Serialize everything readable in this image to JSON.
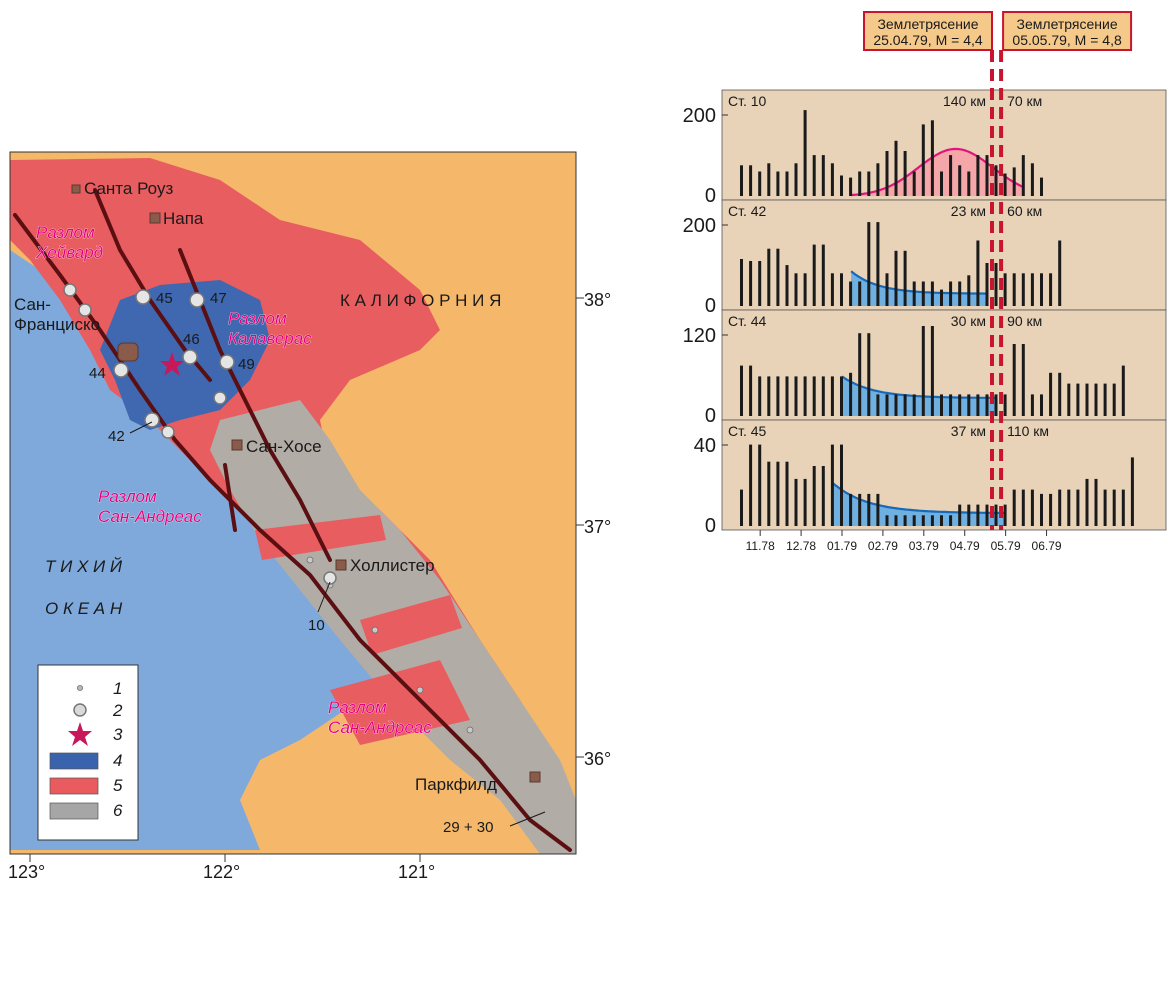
{
  "map": {
    "cities": [
      {
        "id": "santa-rosa",
        "name": "Санта Роуз"
      },
      {
        "id": "napa",
        "name": "Напа"
      },
      {
        "id": "san-francisco",
        "name": "Сан-\nФранциско"
      },
      {
        "id": "san-jose",
        "name": "Сан-Хосе"
      },
      {
        "id": "hollister",
        "name": "Холлистер"
      },
      {
        "id": "parkfield",
        "name": "Паркфилд"
      }
    ],
    "regions": {
      "california": "К А Л И Ф О Р Н И Я",
      "pacific_1": "Т И Х И Й",
      "pacific_2": "О К Е А Н"
    },
    "faults": [
      {
        "id": "hayward",
        "name": "Разлом\nХейвард"
      },
      {
        "id": "calaveras",
        "name": "Разлом\nКалаверас"
      },
      {
        "id": "san-andreas-north",
        "name": "Разлом\nСан-Андреас"
      },
      {
        "id": "san-andreas-south",
        "name": "Разлом\nСан-Андреас"
      }
    ],
    "stations": [
      "45",
      "47",
      "46",
      "49",
      "44",
      "42",
      "10",
      "29 + 30"
    ],
    "lon_ticks": [
      "123°",
      "122°",
      "121°"
    ],
    "lat_ticks": [
      "38°",
      "37°",
      "36°"
    ],
    "legend": [
      {
        "num": "1",
        "symbol": "small-dot",
        "color": "#b9b9b9"
      },
      {
        "num": "2",
        "symbol": "station-circle",
        "color": "#d9d9d9"
      },
      {
        "num": "3",
        "symbol": "star",
        "color": "#c8185a"
      },
      {
        "num": "4",
        "symbol": "swatch",
        "color": "#3a63ae"
      },
      {
        "num": "5",
        "symbol": "swatch",
        "color": "#e95b5e"
      },
      {
        "num": "6",
        "symbol": "swatch",
        "color": "#a6a6a6"
      }
    ],
    "colors": {
      "ocean": "#7fa8db",
      "land": "#f5b86a",
      "blue_zone": "#3f68b0",
      "red_zone": "#e85d5f",
      "gray_zone": "#b2aca6",
      "fault": "#5b0f12",
      "fault_label": "#e6007e"
    }
  },
  "earthquakes": [
    {
      "label_line1": "Землетрясение",
      "label_line2": "25.04.79, M = 4,4",
      "x_index": 14.5
    },
    {
      "label_line1": "Землетрясение",
      "label_line2": "05.05.79, M = 4,8",
      "x_index": 15.5
    }
  ],
  "chart_data": {
    "type": "bar",
    "x_tick_labels": [
      "11.78",
      "12.78",
      "01.79",
      "02.79",
      "03.79",
      "04.79",
      "05.79",
      "06.79"
    ],
    "colors": {
      "panel_bg": "#e8d2b8",
      "bar": "#1a1a1a",
      "pink_fill": "#f4a6a8",
      "pink_line": "#e0157c",
      "blue_fill": "#6fb0e0",
      "blue_line": "#1768b6",
      "eq_line": "#c8142f"
    },
    "panels": [
      {
        "station": "Ст. 10",
        "dist_left": "140 км",
        "dist_right": "70 км",
        "ymax": 220,
        "ytick_top": "200",
        "ytick_zero": "0",
        "curve": "pink",
        "values": [
          75,
          75,
          60,
          80,
          60,
          60,
          80,
          210,
          100,
          100,
          80,
          50,
          45,
          60,
          60,
          80,
          110,
          135,
          110,
          60,
          175,
          185,
          60,
          100,
          75,
          60,
          100,
          100,
          75,
          55,
          70,
          100,
          80,
          45
        ],
        "curve_params": {
          "peak": 115,
          "center": 23.5,
          "width": 9,
          "start": 12,
          "end": 31
        }
      },
      {
        "station": "Ст. 42",
        "dist_left": "23 км",
        "dist_right": "60 км",
        "ymax": 220,
        "ytick_top": "200",
        "ytick_zero": "0",
        "curve": "blue",
        "values": [
          115,
          110,
          110,
          140,
          140,
          100,
          80,
          80,
          150,
          150,
          80,
          80,
          60,
          60,
          205,
          205,
          80,
          135,
          135,
          60,
          60,
          60,
          40,
          60,
          60,
          75,
          160,
          105,
          105,
          80,
          80,
          80,
          80,
          80,
          80,
          160
        ],
        "curve_params": {
          "start": 12,
          "end": 27,
          "y0": 85,
          "y1": 30
        }
      },
      {
        "station": "Ст. 44",
        "dist_left": "30 км",
        "dist_right": "90 км",
        "ymax": 125,
        "ytick_top": "120",
        "ytick_zero": "0",
        "curve": "blue",
        "values": [
          70,
          70,
          55,
          55,
          55,
          55,
          55,
          55,
          55,
          55,
          55,
          55,
          60,
          115,
          115,
          30,
          30,
          30,
          30,
          30,
          130,
          130,
          30,
          30,
          30,
          30,
          30,
          30,
          30,
          30,
          100,
          100,
          30,
          30,
          60,
          60,
          45,
          45,
          45,
          45,
          45,
          45,
          70
        ],
        "curve_params": {
          "start": 11,
          "end": 28,
          "y0": 55,
          "y1": 25
        }
      },
      {
        "station": "Ст. 45",
        "dist_left": "37 км",
        "dist_right": "110 км",
        "ymax": 42,
        "ytick_top": "40",
        "ytick_zero": "0",
        "curve": "blue",
        "values": [
          17,
          38,
          38,
          30,
          30,
          30,
          22,
          22,
          28,
          28,
          38,
          38,
          15,
          15,
          15,
          15,
          5,
          5,
          5,
          5,
          5,
          5,
          5,
          5,
          10,
          10,
          10,
          10,
          10,
          10,
          17,
          17,
          17,
          15,
          15,
          17,
          17,
          17,
          22,
          22,
          17,
          17,
          17,
          32
        ],
        "curve_params": {
          "start": 10,
          "end": 29,
          "y0": 20,
          "y1": 6
        }
      }
    ]
  }
}
